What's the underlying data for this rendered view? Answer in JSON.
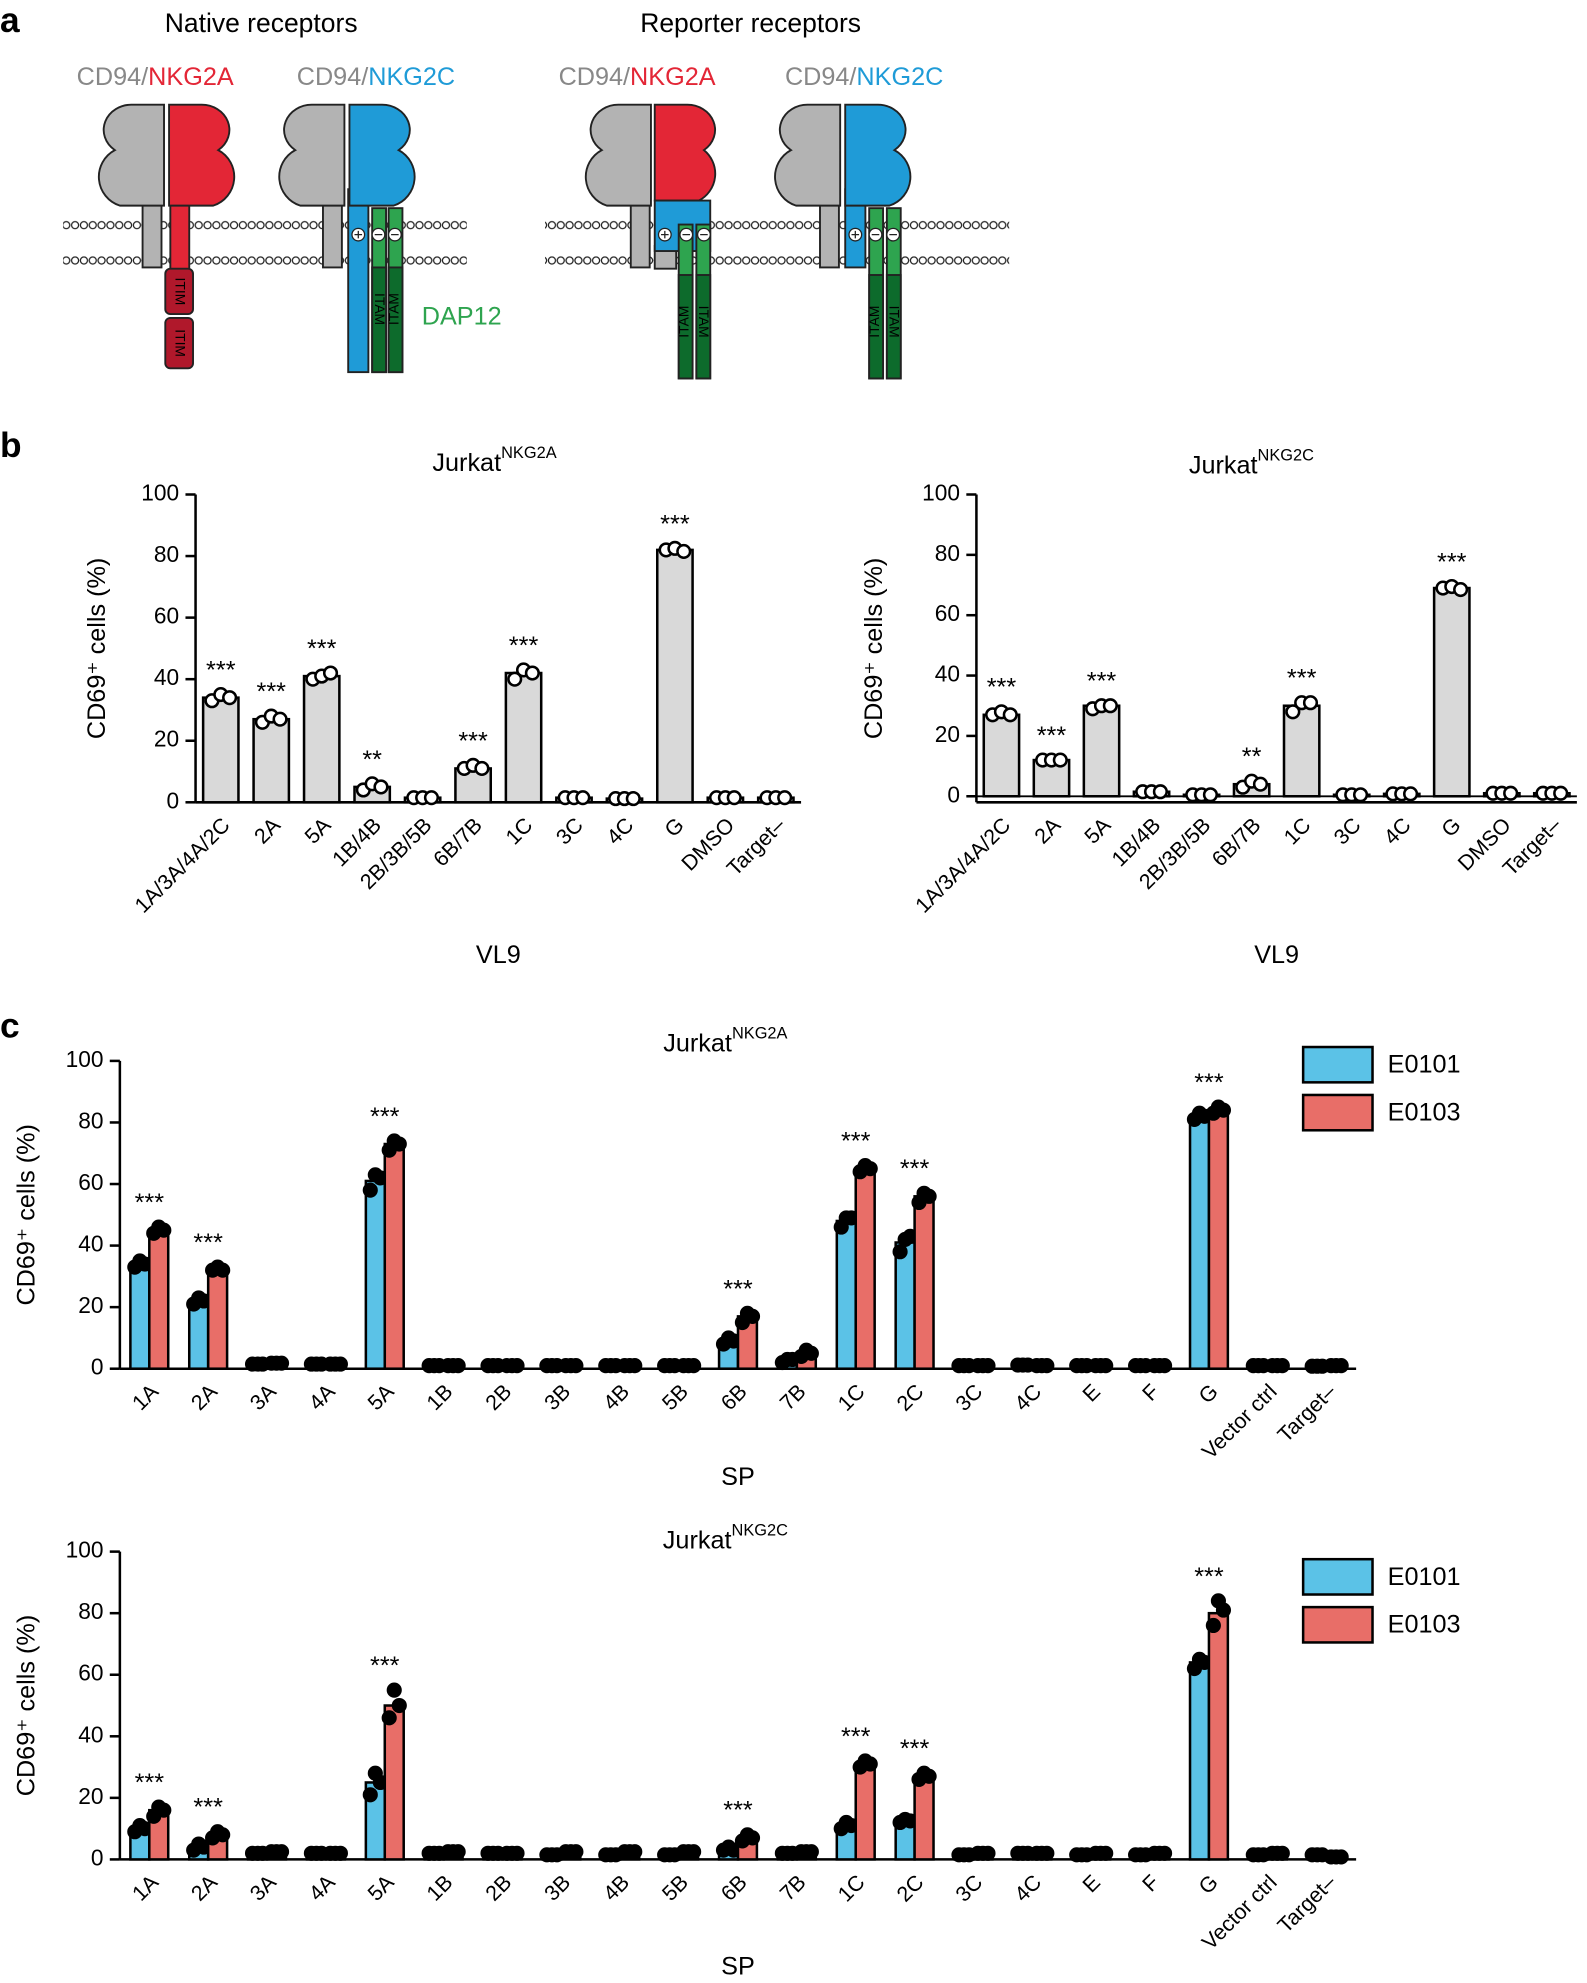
{
  "panel_labels": [
    "a",
    "b",
    "c"
  ],
  "diagram": {
    "native_title": "Native receptors",
    "reporter_title": "Reporter receptors",
    "cd94": "CD94/",
    "nkg2a": "NKG2A",
    "nkg2c": "NKG2C",
    "itim": "ITIM",
    "itam": "ITAM",
    "dap12": "DAP12"
  },
  "chart_data": [
    {
      "type": "bar",
      "title": "Jurkat",
      "title_superscript": "NKG2A",
      "ylabel": "CD69⁺ cells (%)",
      "xlabel": "VL9",
      "categories": [
        "1A/3A/4A/2C",
        "2A",
        "5A",
        "1B/4B",
        "2B/3B/5B",
        "6B/7B",
        "1C",
        "3C",
        "4C",
        "G",
        "DMSO",
        "Target–"
      ],
      "values": [
        34,
        27,
        41,
        5,
        1.5,
        11,
        42,
        1.5,
        1.2,
        82,
        1.5,
        1.5
      ],
      "points": [
        [
          33,
          35,
          34
        ],
        [
          26,
          28,
          27
        ],
        [
          40,
          41,
          42
        ],
        [
          4,
          6,
          5
        ],
        [
          1.5,
          1.5,
          1.5
        ],
        [
          11,
          12,
          11
        ],
        [
          40,
          43,
          42
        ],
        [
          1.5,
          1.5,
          1.5
        ],
        [
          1.2,
          1.2,
          1.2
        ],
        [
          82,
          82.5,
          81.5
        ],
        [
          1.5,
          1.5,
          1.5
        ],
        [
          1.5,
          1.5,
          1.5
        ]
      ],
      "significance": [
        "***",
        "***",
        "***",
        "**",
        null,
        "***",
        "***",
        null,
        null,
        "***",
        null,
        null
      ],
      "color": "#d9d9d9",
      "ylim": [
        0,
        100
      ],
      "yticks": [
        0,
        20,
        40,
        60,
        80,
        100
      ]
    },
    {
      "type": "bar",
      "title": "Jurkat",
      "title_superscript": "NKG2C",
      "ylabel": "CD69⁺ cells (%)",
      "xlabel": "VL9",
      "categories": [
        "1A/3A/4A/2C",
        "2A",
        "5A",
        "1B/4B",
        "2B/3B/5B",
        "6B/7B",
        "1C",
        "3C",
        "4C",
        "G",
        "DMSO",
        "Target–"
      ],
      "values": [
        27,
        12,
        30,
        1.5,
        0.5,
        4,
        30,
        0.5,
        0.8,
        69,
        1,
        1
      ],
      "points": [
        [
          27,
          28,
          27
        ],
        [
          12,
          12,
          12
        ],
        [
          29,
          30,
          30
        ],
        [
          1.5,
          1.5,
          1.5
        ],
        [
          0.5,
          0.5,
          0.5
        ],
        [
          3,
          5,
          4
        ],
        [
          28,
          31,
          31
        ],
        [
          0.5,
          0.5,
          0.5
        ],
        [
          0.8,
          0.8,
          0.8
        ],
        [
          69,
          69.5,
          68.5
        ],
        [
          1,
          1,
          1
        ],
        [
          1,
          1,
          1
        ]
      ],
      "significance": [
        "***",
        "***",
        "***",
        null,
        null,
        "**",
        "***",
        null,
        null,
        "***",
        null,
        null
      ],
      "color": "#d9d9d9",
      "ylim": [
        -2,
        100
      ],
      "yticks": [
        0,
        20,
        40,
        60,
        80,
        100
      ]
    },
    {
      "type": "grouped_bar",
      "title": "Jurkat",
      "title_superscript": "NKG2A",
      "ylabel": "CD69⁺ cells (%)",
      "xlabel": "SP",
      "categories": [
        "1A",
        "2A",
        "3A",
        "4A",
        "5A",
        "1B",
        "2B",
        "3B",
        "4B",
        "5B",
        "6B",
        "7B",
        "1C",
        "2C",
        "3C",
        "4C",
        "E",
        "F",
        "G",
        "Vector ctrl",
        "Target–"
      ],
      "series": [
        {
          "name": "E0101",
          "color": "#5bc2e7",
          "values": [
            34,
            22,
            1.5,
            1.5,
            61,
            1,
            1,
            1,
            1,
            1,
            9,
            3,
            48,
            41,
            1,
            1.2,
            1,
            1,
            82,
            1,
            0.8
          ],
          "points": [
            [
              33,
              35,
              34
            ],
            [
              21,
              23,
              22
            ],
            [
              1.5,
              1.5,
              1.5
            ],
            [
              1.5,
              1.5,
              1.5
            ],
            [
              58,
              63,
              62
            ],
            [
              1,
              1,
              1
            ],
            [
              1,
              1,
              1
            ],
            [
              1,
              1,
              1
            ],
            [
              1,
              1,
              1
            ],
            [
              1,
              1,
              1
            ],
            [
              8,
              10,
              9
            ],
            [
              2,
              3,
              3
            ],
            [
              46,
              49,
              49
            ],
            [
              38,
              42,
              43
            ],
            [
              1,
              1,
              1
            ],
            [
              1.2,
              1.2,
              1.2
            ],
            [
              1,
              1,
              1
            ],
            [
              1,
              1,
              1
            ],
            [
              81,
              83,
              82
            ],
            [
              1,
              1,
              1
            ],
            [
              0.8,
              0.8,
              0.8
            ]
          ]
        },
        {
          "name": "E0103",
          "color": "#e86e68",
          "values": [
            45,
            32,
            1.8,
            1.5,
            73,
            1,
            1,
            1,
            1,
            1,
            17,
            5,
            65,
            56,
            1,
            1,
            1,
            1,
            84,
            1,
            1
          ],
          "points": [
            [
              44,
              46,
              45
            ],
            [
              32,
              33,
              32
            ],
            [
              1.8,
              1.8,
              1.8
            ],
            [
              1.5,
              1.5,
              1.5
            ],
            [
              71,
              74,
              73
            ],
            [
              1,
              1,
              1
            ],
            [
              1,
              1,
              1
            ],
            [
              1,
              1,
              1
            ],
            [
              1,
              1,
              1
            ],
            [
              1,
              1,
              1
            ],
            [
              15,
              18,
              17
            ],
            [
              4,
              6,
              5
            ],
            [
              64,
              66,
              65
            ],
            [
              54,
              57,
              56
            ],
            [
              1,
              1,
              1
            ],
            [
              1,
              1,
              1
            ],
            [
              1,
              1,
              1
            ],
            [
              1,
              1,
              1
            ],
            [
              83,
              85,
              84
            ],
            [
              1,
              1,
              1
            ],
            [
              1,
              1,
              1
            ]
          ]
        }
      ],
      "significance": [
        "***",
        "***",
        null,
        null,
        "***",
        null,
        null,
        null,
        null,
        null,
        "***",
        null,
        "***",
        "***",
        null,
        null,
        null,
        null,
        "***",
        null,
        null
      ],
      "legend": "upper right",
      "ylim": [
        0,
        100
      ],
      "yticks": [
        0,
        20,
        40,
        60,
        80,
        100
      ]
    },
    {
      "type": "grouped_bar",
      "title": "Jurkat",
      "title_superscript": "NKG2C",
      "ylabel": "CD69⁺ cells (%)",
      "xlabel": "SP",
      "categories": [
        "1A",
        "2A",
        "3A",
        "4A",
        "5A",
        "1B",
        "2B",
        "3B",
        "4B",
        "5B",
        "6B",
        "7B",
        "1C",
        "2C",
        "3C",
        "4C",
        "E",
        "F",
        "G",
        "Vector ctrl",
        "Target–"
      ],
      "series": [
        {
          "name": "E0101",
          "color": "#5bc2e7",
          "values": [
            10,
            4,
            2,
            2,
            25,
            2,
            2,
            1.5,
            1.5,
            1.5,
            3,
            2,
            11,
            12.5,
            1.5,
            2,
            1.5,
            1.5,
            64,
            1.5,
            1.5
          ],
          "points": [
            [
              9,
              11,
              10
            ],
            [
              3,
              5,
              4
            ],
            [
              2,
              2,
              2
            ],
            [
              2,
              2,
              2
            ],
            [
              21,
              28,
              25
            ],
            [
              2,
              2,
              2
            ],
            [
              2,
              2,
              2
            ],
            [
              1.5,
              1.5,
              1.5
            ],
            [
              1.5,
              1.5,
              1.5
            ],
            [
              1.5,
              1.5,
              1.5
            ],
            [
              3,
              4,
              3
            ],
            [
              2,
              2,
              2
            ],
            [
              10,
              12,
              11
            ],
            [
              12,
              13,
              12.5
            ],
            [
              1.5,
              1.5,
              1.5
            ],
            [
              2,
              2,
              2
            ],
            [
              1.5,
              1.5,
              1.5
            ],
            [
              1.5,
              1.5,
              1.5
            ],
            [
              62,
              65,
              64
            ],
            [
              1.5,
              1.5,
              1.5
            ],
            [
              1.5,
              1.5,
              1.5
            ]
          ]
        },
        {
          "name": "E0103",
          "color": "#e86e68",
          "values": [
            16,
            8,
            2.5,
            2,
            50,
            2.5,
            2,
            2.5,
            2.5,
            2.5,
            7,
            2.5,
            31,
            27,
            2,
            2,
            2,
            2,
            80,
            2,
            0.8
          ],
          "points": [
            [
              14,
              17,
              16
            ],
            [
              7,
              9,
              8
            ],
            [
              2.5,
              2.5,
              2.5
            ],
            [
              2,
              2,
              2
            ],
            [
              46,
              55,
              50
            ],
            [
              2.5,
              2.5,
              2.5
            ],
            [
              2,
              2,
              2
            ],
            [
              2.5,
              2.5,
              2.5
            ],
            [
              2.5,
              2.5,
              2.5
            ],
            [
              2.5,
              2.5,
              2.5
            ],
            [
              6,
              8,
              7
            ],
            [
              2.5,
              2.5,
              2.5
            ],
            [
              30,
              32,
              31
            ],
            [
              26,
              28,
              27
            ],
            [
              2,
              2,
              2
            ],
            [
              2,
              2,
              2
            ],
            [
              2,
              2,
              2
            ],
            [
              2,
              2,
              2
            ],
            [
              76,
              84,
              81
            ],
            [
              2,
              2,
              2
            ],
            [
              0.8,
              0.8,
              0.8
            ]
          ]
        }
      ],
      "significance": [
        "***",
        "***",
        null,
        null,
        "***",
        null,
        null,
        null,
        null,
        null,
        "***",
        null,
        "***",
        "***",
        null,
        null,
        null,
        null,
        "***",
        null,
        null
      ],
      "legend": "upper right",
      "ylim": [
        0,
        100
      ],
      "yticks": [
        0,
        20,
        40,
        60,
        80,
        100
      ]
    }
  ]
}
